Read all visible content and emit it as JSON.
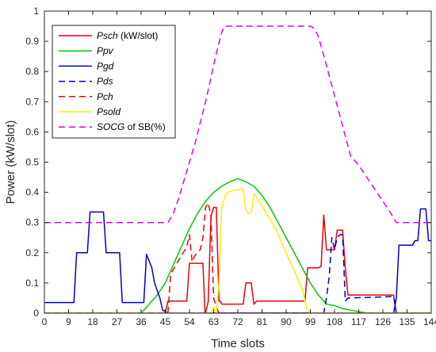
{
  "chart_data": {
    "type": "line",
    "xlabel": "Time slots",
    "ylabel": "Power (kW/slot)",
    "xlim": [
      0,
      144
    ],
    "ylim": [
      0,
      1
    ],
    "xticks": [
      0,
      9,
      18,
      27,
      36,
      45,
      54,
      63,
      72,
      81,
      90,
      99,
      108,
      117,
      126,
      135,
      144
    ],
    "xtick_labels": [
      "0",
      "9",
      "18",
      "27",
      "36",
      "45",
      "54",
      "63",
      "72",
      "81",
      "90",
      "99",
      "108",
      "117",
      "126",
      "135",
      "144"
    ],
    "yticks": [
      0,
      0.1,
      0.2,
      0.3,
      0.4,
      0.5,
      0.6,
      0.7,
      0.8,
      0.9,
      1
    ],
    "ytick_labels": [
      "0",
      "0.1",
      "0.2",
      "0.3",
      "0.4",
      "0.5",
      "0.6",
      "0.7",
      "0.8",
      "0.9",
      "1"
    ],
    "grid": false,
    "legend_position": "top-left",
    "series": [
      {
        "name": "Psch",
        "name_suffix": " (kW/slot)",
        "color": "#e8000b",
        "dash": "solid",
        "x": [
          0,
          44,
          45,
          46,
          53,
          54,
          55,
          57,
          58,
          59,
          59.8,
          60,
          61,
          62,
          63,
          64,
          65,
          65.5,
          66,
          74,
          75,
          77,
          78,
          79,
          97,
          98,
          102,
          103,
          104,
          105,
          106,
          108,
          109,
          110,
          111,
          112,
          113,
          114,
          130,
          131,
          144
        ],
        "y": [
          0,
          0,
          0,
          0.04,
          0.04,
          0.165,
          0.165,
          0.165,
          0.165,
          0.165,
          0,
          0,
          0.04,
          0.32,
          0.35,
          0.35,
          0.04,
          0.04,
          0.03,
          0.03,
          0.1,
          0.1,
          0.03,
          0.04,
          0.04,
          0.15,
          0.15,
          0.155,
          0.325,
          0.21,
          0.21,
          0.21,
          0.275,
          0.275,
          0.275,
          0.15,
          0.06,
          0.06,
          0.06,
          0,
          0
        ]
      },
      {
        "name": "Ppv",
        "name_suffix": "",
        "color": "#00cc00",
        "dash": "solid",
        "x": [
          0,
          36,
          39,
          42,
          45,
          48,
          51,
          54,
          57,
          60,
          63,
          66,
          69,
          72,
          75,
          78,
          81,
          84,
          87,
          90,
          93,
          96,
          99,
          102,
          105,
          108,
          111,
          114,
          117,
          120,
          123,
          126,
          129,
          144
        ],
        "y": [
          0,
          0,
          0.03,
          0.06,
          0.1,
          0.16,
          0.22,
          0.28,
          0.33,
          0.37,
          0.4,
          0.42,
          0.435,
          0.445,
          0.435,
          0.42,
          0.39,
          0.35,
          0.3,
          0.25,
          0.2,
          0.15,
          0.1,
          0.06,
          0.03,
          0.025,
          0.015,
          0.01,
          0.005,
          0,
          0,
          0,
          0,
          0
        ]
      },
      {
        "name": "Pgd",
        "name_suffix": "",
        "color": "#0000cc",
        "dash": "solid",
        "x": [
          0,
          11,
          12,
          14,
          15,
          16,
          17,
          19,
          20,
          22,
          23,
          24,
          25,
          28,
          29,
          32,
          33,
          37,
          38,
          40,
          41,
          43,
          44,
          46,
          47,
          130,
          131,
          132,
          133,
          137,
          138,
          139,
          140,
          141,
          142,
          143,
          144
        ],
        "y": [
          0.035,
          0.035,
          0.2,
          0.2,
          0.2,
          0.2,
          0.335,
          0.335,
          0.335,
          0.335,
          0.2,
          0.2,
          0.2,
          0.2,
          0.035,
          0.035,
          0.035,
          0.035,
          0.195,
          0.15,
          0.1,
          0.05,
          0.01,
          0,
          0,
          0,
          0.05,
          0.225,
          0.225,
          0.225,
          0.24,
          0.24,
          0.345,
          0.345,
          0.345,
          0.24,
          0.24
        ]
      },
      {
        "name": "Pds",
        "name_suffix": "",
        "color": "#0000cc",
        "dash": "dashed",
        "x": [
          0,
          104,
          105,
          106,
          107,
          108,
          109,
          110,
          111,
          112,
          113,
          130,
          131,
          144
        ],
        "y": [
          0,
          0,
          0.05,
          0.12,
          0.25,
          0.21,
          0.25,
          0.26,
          0.26,
          0.04,
          0.05,
          0.055,
          0,
          0
        ]
      },
      {
        "name": "Pch",
        "name_suffix": "",
        "color": "#e8000b",
        "dash": "dashed",
        "x": [
          0,
          46,
          47,
          49,
          51,
          53,
          54,
          55,
          56,
          58,
          59,
          60,
          61,
          62,
          63,
          64,
          65,
          144
        ],
        "y": [
          0,
          0,
          0.13,
          0.16,
          0.19,
          0.22,
          0.26,
          0.17,
          0.19,
          0.21,
          0.25,
          0.35,
          0.365,
          0.32,
          0.05,
          0.02,
          0,
          0
        ]
      },
      {
        "name": "Psold",
        "name_suffix": "",
        "color": "#ffee00",
        "dash": "solid",
        "x": [
          0,
          62,
          63,
          64,
          65,
          66,
          67,
          68,
          70,
          73,
          74,
          75,
          76,
          77,
          78,
          80,
          82,
          84,
          86,
          88,
          90,
          92,
          94,
          96,
          97,
          98,
          99,
          144
        ],
        "y": [
          0,
          0,
          0.02,
          0,
          0.1,
          0.35,
          0.38,
          0.4,
          0.405,
          0.41,
          0.41,
          0.34,
          0.33,
          0.335,
          0.395,
          0.37,
          0.34,
          0.31,
          0.28,
          0.24,
          0.2,
          0.16,
          0.12,
          0.08,
          0.04,
          0.01,
          0,
          0
        ]
      },
      {
        "name": "SOCG",
        "name_suffix": " of SB(%)",
        "color": "#e600e6",
        "dash": "dashed",
        "x": [
          0,
          46,
          48,
          50,
          52,
          54,
          56,
          58,
          60,
          62,
          64,
          66,
          67,
          99,
          100,
          101,
          102,
          105,
          108,
          111,
          114,
          115,
          117,
          120,
          123,
          126,
          129,
          131,
          144
        ],
        "y": [
          0.3,
          0.3,
          0.33,
          0.38,
          0.44,
          0.5,
          0.56,
          0.63,
          0.7,
          0.78,
          0.86,
          0.93,
          0.95,
          0.95,
          0.945,
          0.935,
          0.915,
          0.82,
          0.72,
          0.62,
          0.52,
          0.51,
          0.49,
          0.45,
          0.41,
          0.37,
          0.33,
          0.3,
          0.3
        ]
      }
    ]
  }
}
